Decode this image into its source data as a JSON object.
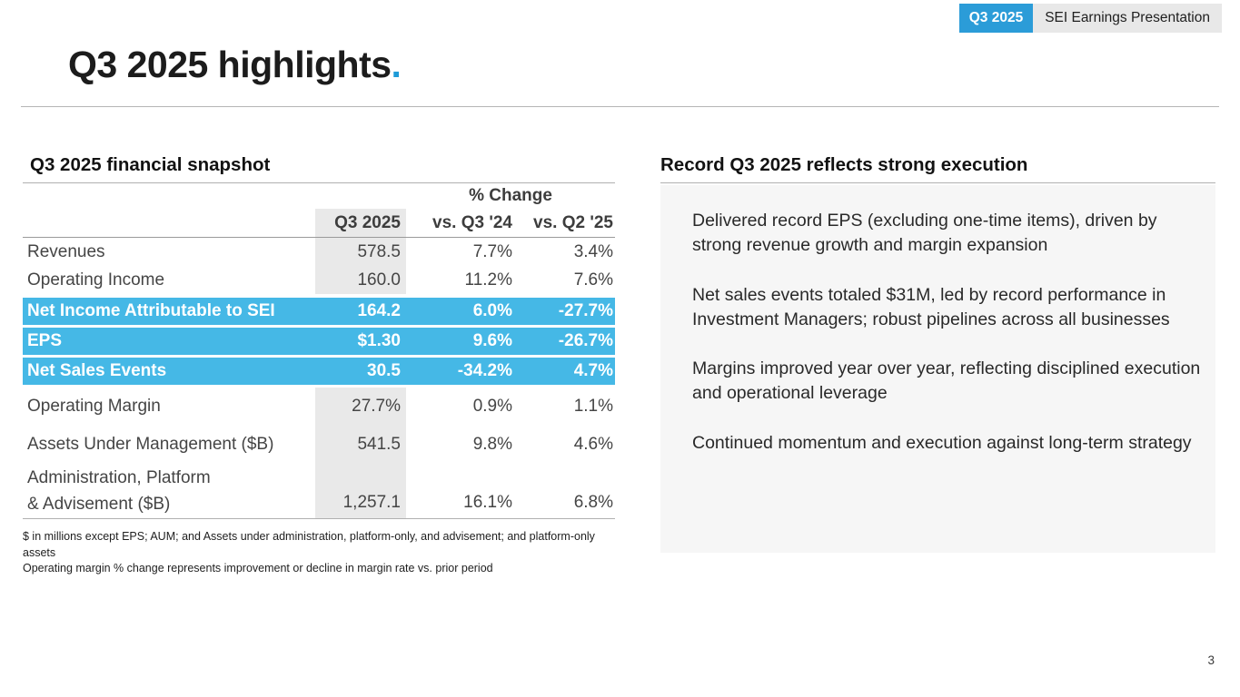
{
  "slide": {
    "title": {
      "text": "Q3 2025 highlights",
      "dot": "."
    },
    "badge": {
      "quarter": "Q3 2025",
      "label": "SEI Earnings Presentation"
    },
    "page_number": "3"
  },
  "snapshot": {
    "heading": "Q3 2025 financial snapshot",
    "col_group_header": "% Change",
    "columns": {
      "value": "Q3 2025",
      "vs_q3_24": "vs. Q3 '24",
      "vs_q2_25": "vs. Q2 '25"
    },
    "rows": [
      {
        "label": "Revenues",
        "value": "578.5",
        "vs_q3_24": "7.7%",
        "vs_q2_25": "3.4%",
        "highlight": false
      },
      {
        "label": "Operating Income",
        "value": "160.0",
        "vs_q3_24": "11.2%",
        "vs_q2_25": "7.6%",
        "highlight": false
      },
      {
        "label": "Net Income Attributable to SEI",
        "value": "164.2",
        "vs_q3_24": "6.0%",
        "vs_q2_25": "-27.7%",
        "highlight": true
      },
      {
        "label": "EPS",
        "value": "$1.30",
        "vs_q3_24": "9.6%",
        "vs_q2_25": "-26.7%",
        "highlight": true
      },
      {
        "label": "Net Sales Events",
        "value": "30.5",
        "vs_q3_24": "-34.2%",
        "vs_q2_25": "4.7%",
        "highlight": true
      },
      {
        "label": "Operating Margin",
        "value": "27.7%",
        "vs_q3_24": "0.9%",
        "vs_q2_25": "1.1%",
        "highlight": false
      },
      {
        "label": "Assets Under Management ($B)",
        "value": "541.5",
        "vs_q3_24": "9.8%",
        "vs_q2_25": "4.6%",
        "highlight": false
      },
      {
        "label_line1": "Administration, Platform",
        "label_line2": "& Advisement ($B)",
        "value": "1,257.1",
        "vs_q3_24": "16.1%",
        "vs_q2_25": "6.8%",
        "highlight": false
      }
    ],
    "footnotes": [
      "$ in millions except EPS; AUM; and Assets under administration, platform-only, and advisement; and platform-only assets",
      "Operating margin % change represents improvement or decline in margin rate vs. prior period"
    ]
  },
  "commentary": {
    "heading": "Record Q3 2025 reflects strong execution",
    "points": [
      "Delivered record EPS (excluding one-time items), driven by strong revenue growth and margin expansion",
      "Net sales events totaled $31M, led by record performance in Investment Managers; robust pipelines across all businesses",
      "Margins improved year over year, reflecting disciplined execution and operational leverage",
      "Continued momentum and execution against long-term strategy"
    ]
  },
  "colors": {
    "accent_blue": "#1e9bd7",
    "badge_blue": "#2b9cd8",
    "highlight_row_blue": "#45b8e6",
    "column_band_gray": "#e9e9e9",
    "panel_box_gray": "#f6f6f6",
    "badge_gray": "#e8e8e8"
  }
}
